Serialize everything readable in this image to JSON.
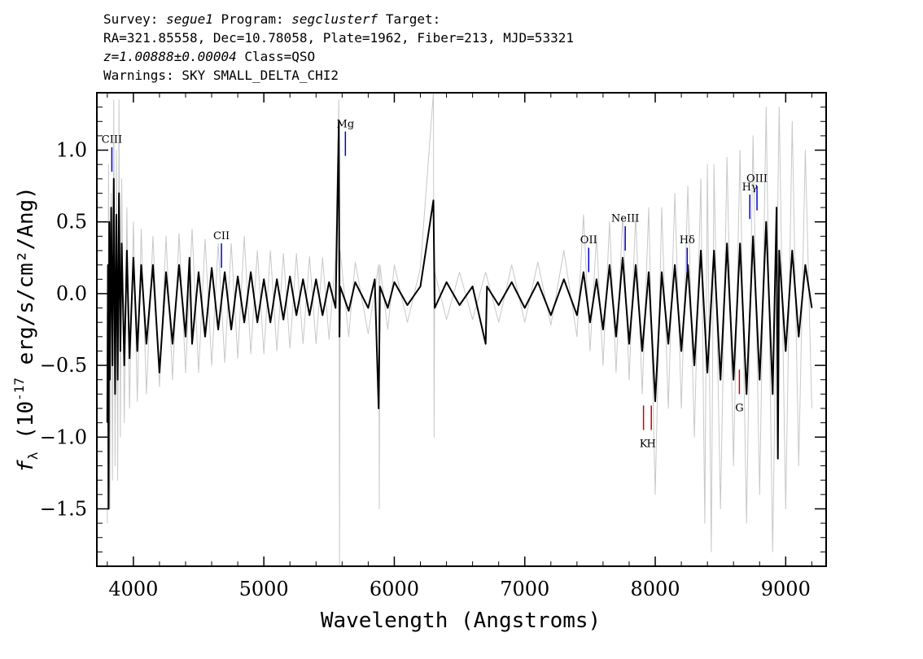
{
  "header": {
    "survey_label": "Survey:",
    "survey": "segue1",
    "program_label": "Program:",
    "program": "segclusterf",
    "target_label": "Target:",
    "line2": "RA=321.85558, Dec=10.78058, Plate=1962, Fiber=213, MJD=53321",
    "redshift": "z=1.00888±0.00004",
    "class_text": "Class=QSO",
    "warnings": "Warnings: SKY SMALL_DELTA_CHI2"
  },
  "chart_data": {
    "type": "line",
    "xlabel": "Wavelength (Angstroms)",
    "ylabel_prefix": "f",
    "ylabel_sub": "λ",
    "ylabel_rest": " (10",
    "ylabel_exp": "-17",
    "ylabel_tail": " erg/s/cm²/Ang)",
    "xlim": [
      3720,
      9310
    ],
    "ylim": [
      -1.9,
      1.4
    ],
    "x_ticks": [
      4000,
      5000,
      6000,
      7000,
      8000,
      9000
    ],
    "x_tick_labels": [
      "4000",
      "5000",
      "6000",
      "7000",
      "8000",
      "9000"
    ],
    "y_ticks": [
      1.0,
      0.5,
      0.0,
      -0.5,
      -1.0,
      -1.5
    ],
    "y_tick_labels": [
      "1.0",
      "0.5",
      "0.0",
      "−0.5",
      "−1.0",
      "−1.5"
    ],
    "series": [
      {
        "role": "error",
        "color": "#c8c8c8",
        "points": [
          [
            3800,
            -1.6
          ],
          [
            3810,
            0.9
          ],
          [
            3820,
            -1.5
          ],
          [
            3830,
            0.7
          ],
          [
            3840,
            -1.3
          ],
          [
            3850,
            1.35
          ],
          [
            3860,
            -1.2
          ],
          [
            3870,
            1.0
          ],
          [
            3880,
            -1.3
          ],
          [
            3890,
            1.35
          ],
          [
            3900,
            -1.0
          ],
          [
            3910,
            0.8
          ],
          [
            3930,
            -0.9
          ],
          [
            3950,
            0.6
          ],
          [
            3970,
            -0.8
          ],
          [
            4000,
            0.5
          ],
          [
            4030,
            -0.75
          ],
          [
            4060,
            0.45
          ],
          [
            4100,
            -0.7
          ],
          [
            4150,
            0.4
          ],
          [
            4200,
            -0.65
          ],
          [
            4250,
            0.4
          ],
          [
            4300,
            -0.6
          ],
          [
            4350,
            0.42
          ],
          [
            4400,
            -0.55
          ],
          [
            4450,
            0.45
          ],
          [
            4500,
            -0.55
          ],
          [
            4550,
            0.38
          ],
          [
            4600,
            -0.5
          ],
          [
            4650,
            0.35
          ],
          [
            4700,
            -0.48
          ],
          [
            4750,
            0.35
          ],
          [
            4800,
            -0.45
          ],
          [
            4850,
            0.4
          ],
          [
            4900,
            -0.42
          ],
          [
            4950,
            0.3
          ],
          [
            5000,
            -0.42
          ],
          [
            5050,
            0.3
          ],
          [
            5100,
            -0.4
          ],
          [
            5150,
            0.28
          ],
          [
            5200,
            -0.38
          ],
          [
            5250,
            0.28
          ],
          [
            5300,
            -0.35
          ],
          [
            5350,
            0.26
          ],
          [
            5400,
            -0.35
          ],
          [
            5450,
            0.25
          ],
          [
            5500,
            -0.32
          ],
          [
            5550,
            0.25
          ],
          [
            5575,
            1.35
          ],
          [
            5580,
            -1.9
          ],
          [
            5585,
            0.3
          ],
          [
            5650,
            -0.3
          ],
          [
            5700,
            0.22
          ],
          [
            5800,
            -0.28
          ],
          [
            5880,
            0.2
          ],
          [
            5885,
            -1.5
          ],
          [
            5890,
            0.2
          ],
          [
            5950,
            -0.25
          ],
          [
            6000,
            0.2
          ],
          [
            6100,
            -0.2
          ],
          [
            6200,
            0.18
          ],
          [
            6300,
            1.4
          ],
          [
            6305,
            -1.0
          ],
          [
            6310,
            0.15
          ],
          [
            6400,
            -0.18
          ],
          [
            6500,
            0.15
          ],
          [
            6600,
            -0.18
          ],
          [
            6700,
            0.15
          ],
          [
            6800,
            -0.2
          ],
          [
            6900,
            0.2
          ],
          [
            7000,
            -0.2
          ],
          [
            7100,
            0.22
          ],
          [
            7200,
            -0.22
          ],
          [
            7300,
            0.3
          ],
          [
            7400,
            -0.3
          ],
          [
            7450,
            0.55
          ],
          [
            7500,
            -0.4
          ],
          [
            7550,
            0.4
          ],
          [
            7600,
            -0.5
          ],
          [
            7650,
            0.5
          ],
          [
            7700,
            -0.55
          ],
          [
            7750,
            0.55
          ],
          [
            7800,
            -0.6
          ],
          [
            7850,
            0.55
          ],
          [
            7900,
            -0.7
          ],
          [
            7950,
            0.6
          ],
          [
            8000,
            -1.4
          ],
          [
            8050,
            0.6
          ],
          [
            8100,
            -0.8
          ],
          [
            8150,
            0.7
          ],
          [
            8200,
            -0.8
          ],
          [
            8250,
            0.75
          ],
          [
            8300,
            -1.0
          ],
          [
            8350,
            0.8
          ],
          [
            8380,
            -1.6
          ],
          [
            8400,
            0.9
          ],
          [
            8430,
            -1.8
          ],
          [
            8450,
            0.9
          ],
          [
            8500,
            -1.5
          ],
          [
            8550,
            0.95
          ],
          [
            8600,
            -1.2
          ],
          [
            8650,
            1.0
          ],
          [
            8700,
            -1.6
          ],
          [
            8750,
            1.1
          ],
          [
            8800,
            -1.4
          ],
          [
            8850,
            1.3
          ],
          [
            8900,
            -1.8
          ],
          [
            8950,
            1.3
          ],
          [
            9000,
            -1.5
          ],
          [
            9050,
            1.2
          ],
          [
            9100,
            -1.2
          ],
          [
            9150,
            1.0
          ],
          [
            9200,
            -0.8
          ]
        ]
      },
      {
        "role": "flux",
        "color": "#000000",
        "points": [
          [
            3800,
            -0.9
          ],
          [
            3805,
            0.2
          ],
          [
            3810,
            -1.5
          ],
          [
            3815,
            0.5
          ],
          [
            3820,
            -0.6
          ],
          [
            3830,
            0.6
          ],
          [
            3840,
            -0.5
          ],
          [
            3850,
            0.8
          ],
          [
            3860,
            -0.7
          ],
          [
            3870,
            0.55
          ],
          [
            3880,
            -0.6
          ],
          [
            3890,
            0.7
          ],
          [
            3900,
            -0.4
          ],
          [
            3910,
            0.35
          ],
          [
            3930,
            -0.5
          ],
          [
            3950,
            0.3
          ],
          [
            3970,
            -0.45
          ],
          [
            4000,
            0.25
          ],
          [
            4030,
            -0.4
          ],
          [
            4060,
            0.2
          ],
          [
            4100,
            -0.35
          ],
          [
            4150,
            0.2
          ],
          [
            4200,
            -0.55
          ],
          [
            4250,
            0.15
          ],
          [
            4300,
            -0.35
          ],
          [
            4350,
            0.2
          ],
          [
            4400,
            -0.3
          ],
          [
            4430,
            0.25
          ],
          [
            4450,
            -0.35
          ],
          [
            4500,
            0.15
          ],
          [
            4550,
            -0.3
          ],
          [
            4600,
            0.18
          ],
          [
            4650,
            -0.25
          ],
          [
            4700,
            0.15
          ],
          [
            4750,
            -0.25
          ],
          [
            4800,
            0.12
          ],
          [
            4850,
            -0.2
          ],
          [
            4900,
            0.15
          ],
          [
            4950,
            -0.2
          ],
          [
            5000,
            0.1
          ],
          [
            5050,
            -0.2
          ],
          [
            5100,
            0.1
          ],
          [
            5150,
            -0.18
          ],
          [
            5200,
            0.12
          ],
          [
            5250,
            -0.15
          ],
          [
            5300,
            0.1
          ],
          [
            5350,
            -0.15
          ],
          [
            5400,
            0.1
          ],
          [
            5450,
            -0.15
          ],
          [
            5500,
            0.08
          ],
          [
            5550,
            -0.1
          ],
          [
            5575,
            1.2
          ],
          [
            5580,
            -0.3
          ],
          [
            5585,
            0.05
          ],
          [
            5650,
            -0.12
          ],
          [
            5700,
            0.08
          ],
          [
            5800,
            -0.1
          ],
          [
            5850,
            0.1
          ],
          [
            5880,
            -0.8
          ],
          [
            5890,
            0.05
          ],
          [
            5950,
            -0.1
          ],
          [
            6000,
            0.08
          ],
          [
            6100,
            -0.08
          ],
          [
            6200,
            0.05
          ],
          [
            6300,
            0.65
          ],
          [
            6310,
            -0.1
          ],
          [
            6400,
            0.08
          ],
          [
            6500,
            -0.08
          ],
          [
            6600,
            0.05
          ],
          [
            6700,
            -0.35
          ],
          [
            6710,
            0.05
          ],
          [
            6800,
            -0.08
          ],
          [
            6900,
            0.08
          ],
          [
            7000,
            -0.1
          ],
          [
            7100,
            0.08
          ],
          [
            7200,
            -0.15
          ],
          [
            7300,
            0.1
          ],
          [
            7400,
            -0.15
          ],
          [
            7450,
            0.15
          ],
          [
            7500,
            -0.2
          ],
          [
            7550,
            0.1
          ],
          [
            7600,
            -0.25
          ],
          [
            7650,
            0.2
          ],
          [
            7700,
            -0.3
          ],
          [
            7750,
            0.25
          ],
          [
            7800,
            -0.35
          ],
          [
            7850,
            0.2
          ],
          [
            7900,
            -0.4
          ],
          [
            7950,
            0.15
          ],
          [
            8000,
            -0.75
          ],
          [
            8050,
            0.15
          ],
          [
            8100,
            -0.35
          ],
          [
            8150,
            0.2
          ],
          [
            8200,
            -0.4
          ],
          [
            8250,
            0.2
          ],
          [
            8300,
            -0.5
          ],
          [
            8350,
            0.3
          ],
          [
            8400,
            -0.55
          ],
          [
            8450,
            0.3
          ],
          [
            8500,
            -0.6
          ],
          [
            8550,
            0.35
          ],
          [
            8600,
            -0.6
          ],
          [
            8650,
            0.35
          ],
          [
            8700,
            -0.7
          ],
          [
            8750,
            0.4
          ],
          [
            8800,
            -0.6
          ],
          [
            8850,
            0.5
          ],
          [
            8900,
            -0.7
          ],
          [
            8930,
            0.6
          ],
          [
            8940,
            -1.15
          ],
          [
            8950,
            0.3
          ],
          [
            9000,
            -0.4
          ],
          [
            9050,
            0.3
          ],
          [
            9100,
            -0.3
          ],
          [
            9150,
            0.2
          ],
          [
            9200,
            -0.1
          ]
        ]
      }
    ],
    "lines": [
      {
        "label": "CIII",
        "wavelength": 3835,
        "y1": 0.85,
        "y2": 1.02,
        "color": "#0000cc",
        "label_y": 1.05,
        "position": "above"
      },
      {
        "label": "CII",
        "wavelength": 4675,
        "y1": 0.18,
        "y2": 0.35,
        "color": "#0000cc",
        "label_y": 0.38,
        "position": "above"
      },
      {
        "label": "Mg",
        "wavelength": 5625,
        "y1": 0.96,
        "y2": 1.13,
        "color": "#0000cc",
        "label_y": 1.16,
        "position": "above"
      },
      {
        "label": "OII",
        "wavelength": 7490,
        "y1": 0.15,
        "y2": 0.32,
        "color": "#0000cc",
        "label_y": 0.35,
        "position": "above"
      },
      {
        "label": "NeIII",
        "wavelength": 7770,
        "y1": 0.3,
        "y2": 0.47,
        "color": "#0000cc",
        "label_y": 0.5,
        "position": "above"
      },
      {
        "label": "Hδ",
        "wavelength": 8245,
        "y1": 0.15,
        "y2": 0.32,
        "color": "#0000cc",
        "label_y": 0.35,
        "position": "above"
      },
      {
        "label": "Hγ",
        "wavelength": 8725,
        "y1": 0.52,
        "y2": 0.69,
        "color": "#0000cc",
        "label_y": 0.72,
        "position": "above"
      },
      {
        "label": "OIII",
        "wavelength": 8780,
        "y1": 0.58,
        "y2": 0.75,
        "color": "#0000cc",
        "label_y": 0.78,
        "position": "above"
      },
      {
        "label": "K",
        "wavelength": 7910,
        "y1": -0.95,
        "y2": -0.78,
        "color": "#cc0000",
        "label_y": -1.07,
        "position": "below"
      },
      {
        "label": "H",
        "wavelength": 7970,
        "y1": -0.95,
        "y2": -0.78,
        "color": "#cc0000",
        "label_y": -1.07,
        "position": "below"
      },
      {
        "label": "G",
        "wavelength": 8645,
        "y1": -0.7,
        "y2": -0.53,
        "color": "#cc0000",
        "label_y": -0.82,
        "position": "below"
      }
    ]
  }
}
